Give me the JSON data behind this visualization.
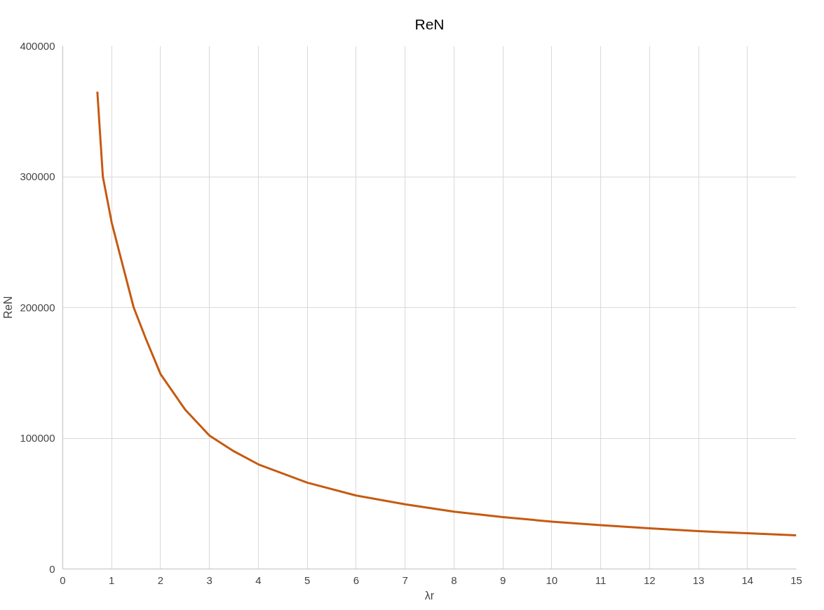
{
  "chart_data": {
    "type": "line",
    "title": "ReN",
    "xlabel": "λr",
    "ylabel": "ReN",
    "xlim": [
      0,
      15
    ],
    "xticks": [
      0,
      1,
      2,
      3,
      4,
      5,
      6,
      7,
      8,
      9,
      10,
      11,
      12,
      13,
      14,
      15
    ],
    "ylim": [
      0,
      400000
    ],
    "yticks": [
      0,
      100000,
      200000,
      300000,
      400000
    ],
    "grid": true,
    "line_style": "solid",
    "series": [
      {
        "color": "#c55a11",
        "x": [
          0.707,
          0.82,
          1,
          1.2,
          1.45,
          1.7,
          2,
          2.5,
          3,
          3.5,
          4,
          5,
          6,
          7,
          8,
          9,
          10,
          11,
          12,
          13,
          14,
          15
        ],
        "values": [
          365000,
          300000,
          265000,
          236000,
          200000,
          176000,
          149000,
          122000,
          102000,
          90000,
          80000,
          66000,
          56200,
          49500,
          43800,
          39700,
          36200,
          33500,
          31100,
          28900,
          27300,
          25700
        ]
      }
    ]
  }
}
